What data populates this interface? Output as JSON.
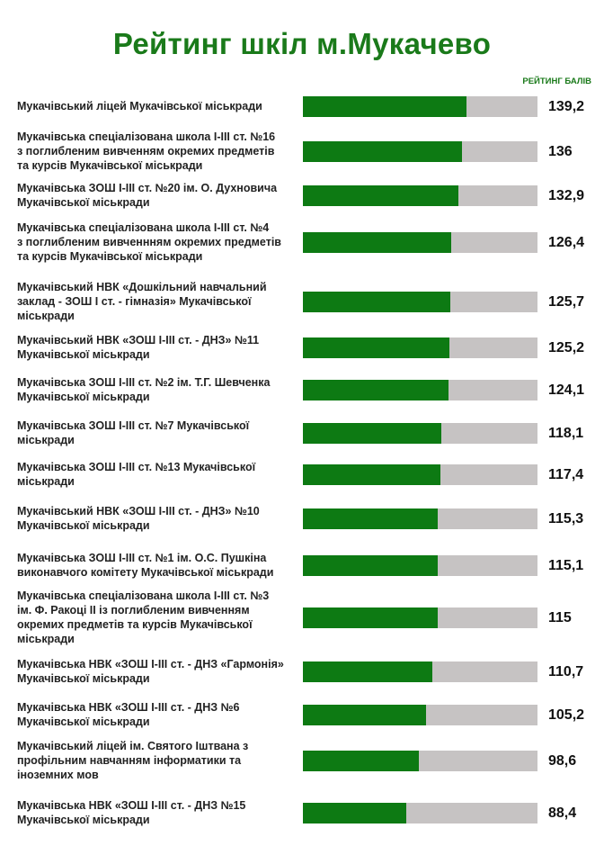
{
  "title": "Рейтинг шкіл м.Мукачево",
  "column_header": "РЕЙТИНГ БАЛІВ",
  "colors": {
    "bar": "#0d7a13",
    "track": "#c6c3c3",
    "title": "#1a7a1a"
  },
  "chart_data": {
    "type": "bar",
    "orientation": "horizontal",
    "title": "Рейтинг шкіл м.Мукачево",
    "value_label": "РЕЙТИНГ БАЛІВ",
    "xlim": [
      0,
      200
    ],
    "categories": [
      "Мукачівський ліцей Мукачівської міськради",
      "Мукачівська спеціалізована школа І-ІІІ ст. №16\nз поглибленим вивченням окремих предметів\nта курсів Мукачівської міськради",
      "Мукачівська ЗОШ І-ІІІ ст. №20 ім. О. Духновича\nМукачівської міськради",
      "Мукачівська спеціалізована школа І-ІІІ ст. №4\nз поглибленим вивченнням окремих предметів\nта курсів Мукачівської міськради",
      "Мукачівський НВК «Дошкільний навчальний\nзаклад - ЗОШ І ст. - гімназія» Мукачівської\nміськради",
      "Мукачівський НВК «ЗОШ І-ІІІ ст. - ДНЗ» №11\nМукачівської міськради",
      "Мукачівська ЗОШ І-ІІІ ст. №2 ім. Т.Г. Шевченка\nМукачівської міськради",
      "Мукачівська ЗОШ І-ІІІ ст. №7 Мукачівської\nміськради",
      "Мукачівська ЗОШ І-ІІІ ст. №13 Мукачівської\nміськради",
      "Мукачівський НВК «ЗОШ І-ІІІ ст. - ДНЗ» №10\nМукачівської міськради",
      "Мукачівська ЗОШ І-ІІІ ст. №1 ім. О.С. Пушкіна\nвиконавчого комітету Мукачівської міськради",
      "Мукачівська спеціалізована школа І-ІІІ ст. №3\nім. Ф. Ракоці ІІ із поглибленим вивченням\nокремих предметів та курсів Мукачівської\nміськради",
      "Мукачівська НВК «ЗОШ І-ІІІ ст. - ДНЗ «Гармонія»\nМукачівської міськради",
      "Мукачівська НВК «ЗОШ І-ІІІ ст. - ДНЗ №6\nМукачівської міськради",
      "Мукачівський ліцей ім. Святого Іштвана з\nпрофільним навчанням інформатики та\nіноземних мов",
      "Мукачівська НВК «ЗОШ І-ІІІ ст. - ДНЗ №15\nМукачівської міськради"
    ],
    "values": [
      139.2,
      136,
      132.9,
      126.4,
      125.7,
      125.2,
      124.1,
      118.1,
      117.4,
      115.3,
      115.1,
      115,
      110.7,
      105.2,
      98.6,
      88.4
    ],
    "value_labels": [
      "139,2",
      "136",
      "132,9",
      "126,4",
      "125,7",
      "125,2",
      "124,1",
      "118,1",
      "117,4",
      "115,3",
      "115,1",
      "115",
      "110,7",
      "105,2",
      "98,6",
      "88,4"
    ]
  }
}
